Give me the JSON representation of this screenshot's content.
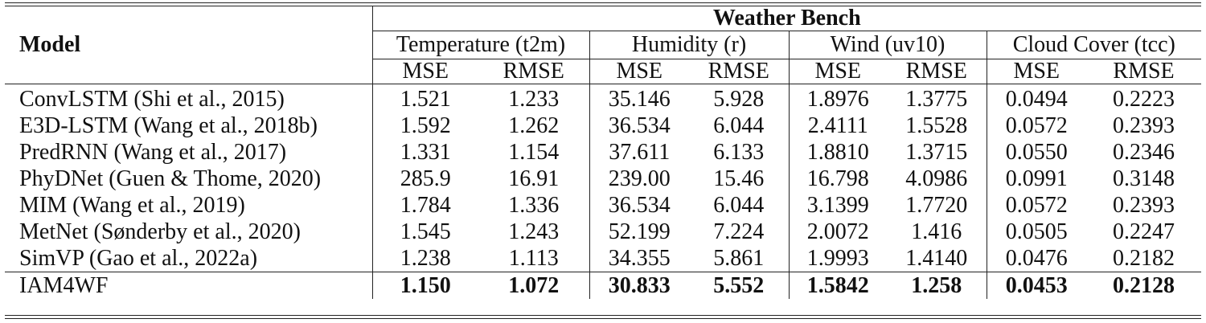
{
  "table": {
    "bench_title": "Weather Bench",
    "model_header": "Model",
    "groups": [
      "Temperature (t2m)",
      "Humidity (r)",
      "Wind (uv10)",
      "Cloud Cover (tcc)"
    ],
    "metrics": [
      "MSE",
      "RMSE"
    ],
    "rows": [
      {
        "model": "ConvLSTM (Shi et al., 2015)",
        "values": [
          "1.521",
          "1.233",
          "35.146",
          "5.928",
          "1.8976",
          "1.3775",
          "0.0494",
          "0.2223"
        ]
      },
      {
        "model": "E3D-LSTM (Wang et al., 2018b)",
        "values": [
          "1.592",
          "1.262",
          "36.534",
          "6.044",
          "2.4111",
          "1.5528",
          "0.0572",
          "0.2393"
        ]
      },
      {
        "model": "PredRNN (Wang et al., 2017)",
        "values": [
          "1.331",
          "1.154",
          "37.611",
          "6.133",
          "1.8810",
          "1.3715",
          "0.0550",
          "0.2346"
        ]
      },
      {
        "model": "PhyDNet (Guen & Thome, 2020)",
        "values": [
          "285.9",
          "16.91",
          "239.00",
          "15.46",
          "16.798",
          "4.0986",
          "0.0991",
          "0.3148"
        ]
      },
      {
        "model": "MIM (Wang et al., 2019)",
        "values": [
          "1.784",
          "1.336",
          "36.534",
          "6.044",
          "3.1399",
          "1.7720",
          "0.0572",
          "0.2393"
        ]
      },
      {
        "model": "MetNet (Sønderby et al., 2020)",
        "values": [
          "1.545",
          "1.243",
          "52.199",
          "7.224",
          "2.0072",
          "1.416",
          "0.0505",
          "0.2247"
        ]
      },
      {
        "model": "SimVP (Gao et al., 2022a)",
        "values": [
          "1.238",
          "1.113",
          "34.355",
          "5.861",
          "1.9993",
          "1.4140",
          "0.0476",
          "0.2182"
        ]
      },
      {
        "model": "IAM4WF",
        "values": [
          "1.150",
          "1.072",
          "30.833",
          "5.552",
          "1.5842",
          "1.258",
          "0.0453",
          "0.2128"
        ]
      }
    ]
  }
}
